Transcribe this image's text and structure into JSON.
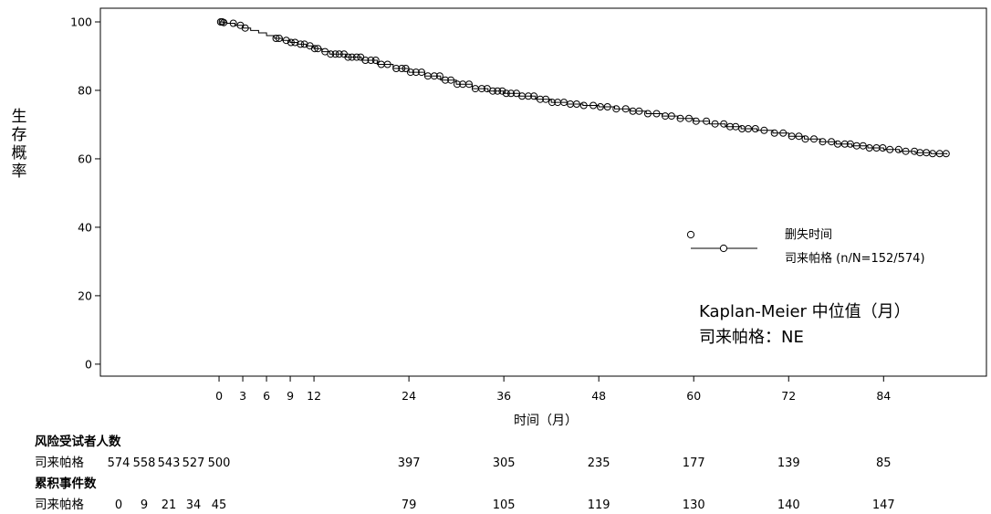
{
  "chart_data": {
    "type": "line",
    "ylabel": "生存概率",
    "xlabel": "时间（月）",
    "xticks": [
      0,
      3,
      6,
      9,
      12,
      24,
      36,
      48,
      60,
      72,
      84
    ],
    "yticks": [
      0,
      20,
      40,
      60,
      80,
      100
    ],
    "xlim": [
      -15,
      97
    ],
    "ylim": [
      -3.5,
      104
    ],
    "grid": false,
    "series": [
      {
        "name": "司来帕格 (n/N=152/574)",
        "x": [
          0,
          0.5,
          1,
          2,
          3,
          4,
          5,
          6,
          7,
          8,
          9,
          10,
          11,
          12,
          13,
          14,
          16,
          18,
          20,
          22,
          24,
          26,
          28,
          30,
          32,
          34,
          36,
          38,
          40,
          42,
          44,
          46,
          48,
          50,
          52,
          54,
          56,
          58,
          60,
          62,
          64,
          66,
          68,
          70,
          72,
          74,
          76,
          78,
          80,
          82,
          84,
          86,
          88,
          90,
          92
        ],
        "y": [
          100,
          99.8,
          99.6,
          99,
          98.2,
          97.5,
          96.8,
          96,
          95.2,
          94.6,
          94,
          93.5,
          93,
          92.2,
          91.3,
          90.6,
          89.7,
          88.8,
          87.6,
          86.4,
          85.3,
          84.2,
          83,
          81.8,
          80.5,
          79.8,
          79.1,
          78.3,
          77.4,
          76.5,
          76,
          75.6,
          75.2,
          74.6,
          73.9,
          73.2,
          72.5,
          71.8,
          71,
          70.2,
          69.4,
          68.8,
          68.3,
          67.5,
          66.6,
          65.8,
          65,
          64.3,
          63.8,
          63.2,
          62.7,
          62.2,
          61.8,
          61.5,
          61.3
        ]
      }
    ],
    "censor_marks": [
      0.2,
      0.4,
      0.6,
      1.8,
      2.7,
      3.3,
      7.2,
      7.6,
      8.5,
      9.1,
      9.6,
      10.3,
      10.8,
      11.5,
      12.1,
      12.5,
      13.4,
      14.1,
      14.7,
      15.2,
      15.8,
      16.3,
      16.8,
      17.4,
      17.9,
      18.5,
      19.2,
      19.8,
      20.5,
      21.3,
      22.4,
      23.1,
      23.6,
      24.2,
      24.9,
      25.6,
      26.4,
      27.2,
      27.9,
      28.6,
      29.3,
      30.1,
      30.8,
      31.6,
      32.4,
      33.2,
      33.9,
      34.6,
      35.2,
      35.8,
      36.3,
      36.9,
      37.6,
      38.3,
      39.1,
      39.8,
      40.6,
      41.3,
      42.1,
      42.8,
      43.6,
      44.4,
      45.2,
      46.1,
      47.3,
      48.2,
      49.1,
      50.2,
      51.4,
      52.3,
      53.1,
      54.2,
      55.3,
      56.4,
      57.2,
      58.3,
      59.4,
      60.3,
      61.6,
      62.7,
      63.8,
      64.6,
      65.3,
      66.1,
      66.9,
      67.8,
      68.9,
      70.2,
      71.3,
      72.4,
      73.3,
      74.1,
      75.2,
      76.3,
      77.4,
      78.2,
      79.1,
      79.8,
      80.6,
      81.4,
      82.2,
      83.1,
      83.9,
      84.8,
      85.9,
      86.8,
      87.9,
      88.6,
      89.4,
      90.2,
      91.1,
      91.9
    ],
    "legend": {
      "censor_label": "删失时间",
      "series_label": "司来帕格 (n/N=152/574)",
      "placement": "lower-right"
    },
    "annotation": {
      "line1": "Kaplan-Meier 中位值（月）",
      "line2": "司来帕格：NE"
    },
    "risk_table": {
      "at_risk_title": "风险受试者人数",
      "events_title": "累积事件数",
      "group_label": "司来帕格",
      "times": [
        0,
        3,
        6,
        9,
        12,
        24,
        36,
        48,
        60,
        72,
        84
      ],
      "at_risk": [
        574,
        558,
        543,
        527,
        500,
        397,
        305,
        235,
        177,
        139,
        85
      ],
      "events": [
        0,
        9,
        21,
        34,
        45,
        79,
        105,
        119,
        130,
        140,
        147
      ]
    }
  }
}
